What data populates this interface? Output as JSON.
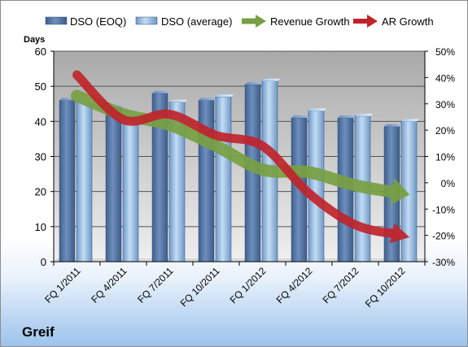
{
  "chart_data": {
    "type": "bar",
    "company": "Greif",
    "categories": [
      "FQ 1/2011",
      "FQ 4/2011",
      "FQ 7/2011",
      "FQ 10/2011",
      "FQ 1/2012",
      "FQ 4/2012",
      "FQ 7/2012",
      "FQ 10/2012"
    ],
    "left_axis": {
      "title": "Days",
      "range": [
        0,
        60
      ],
      "ticks": [
        "0",
        "10",
        "20",
        "30",
        "40",
        "50",
        "60"
      ]
    },
    "right_axis": {
      "range": [
        -30,
        50
      ],
      "ticks": [
        "-30%",
        "-20%",
        "-10%",
        "0%",
        "10%",
        "20%",
        "30%",
        "40%",
        "50%"
      ]
    },
    "series": [
      {
        "name": "DSO (EOQ)",
        "axis": "left",
        "kind": "bar",
        "color": "#4f6f9e",
        "values": [
          46,
          44,
          48,
          46,
          50.5,
          41,
          41,
          38.5
        ]
      },
      {
        "name": "DSO (average)",
        "axis": "left",
        "kind": "bar",
        "color": "#9bbfe3",
        "values": [
          45.5,
          42,
          45.5,
          47,
          51.5,
          43,
          41.5,
          40
        ]
      },
      {
        "name": "Revenue Growth",
        "axis": "right",
        "kind": "arrow",
        "color": "#77a042",
        "values": [
          33,
          26,
          22,
          14,
          5,
          4,
          -1,
          -4
        ]
      },
      {
        "name": "AR Growth",
        "axis": "right",
        "kind": "arrow",
        "color": "#c0242b",
        "values": [
          41,
          24,
          26,
          18,
          14,
          -4,
          -16,
          -20
        ]
      }
    ],
    "legend_position": "top",
    "gridlines": true
  }
}
